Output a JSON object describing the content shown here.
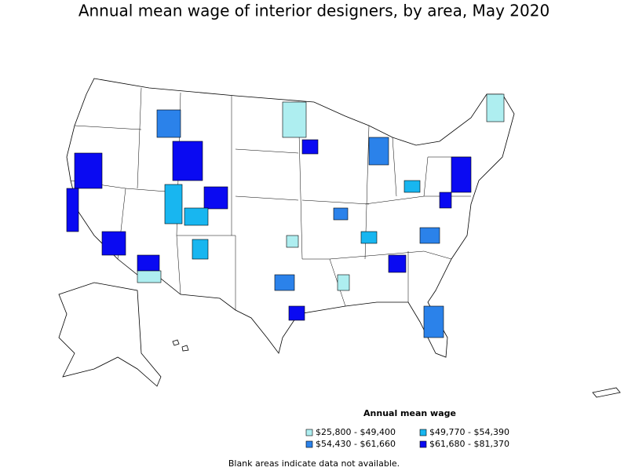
{
  "title": "Annual mean wage of interior designers, by area, May 2020",
  "legend": {
    "title": "Annual mean wage",
    "items": [
      {
        "label": "$25,800 - $49,400",
        "color": "#aeeef0"
      },
      {
        "label": "$49,770 - $54,390",
        "color": "#18b6f0"
      },
      {
        "label": "$54,430 - $61,660",
        "color": "#2b82ea"
      },
      {
        "label": "$61,680 - $81,370",
        "color": "#0a0af2"
      }
    ]
  },
  "note": "Blank areas indicate data not available."
}
